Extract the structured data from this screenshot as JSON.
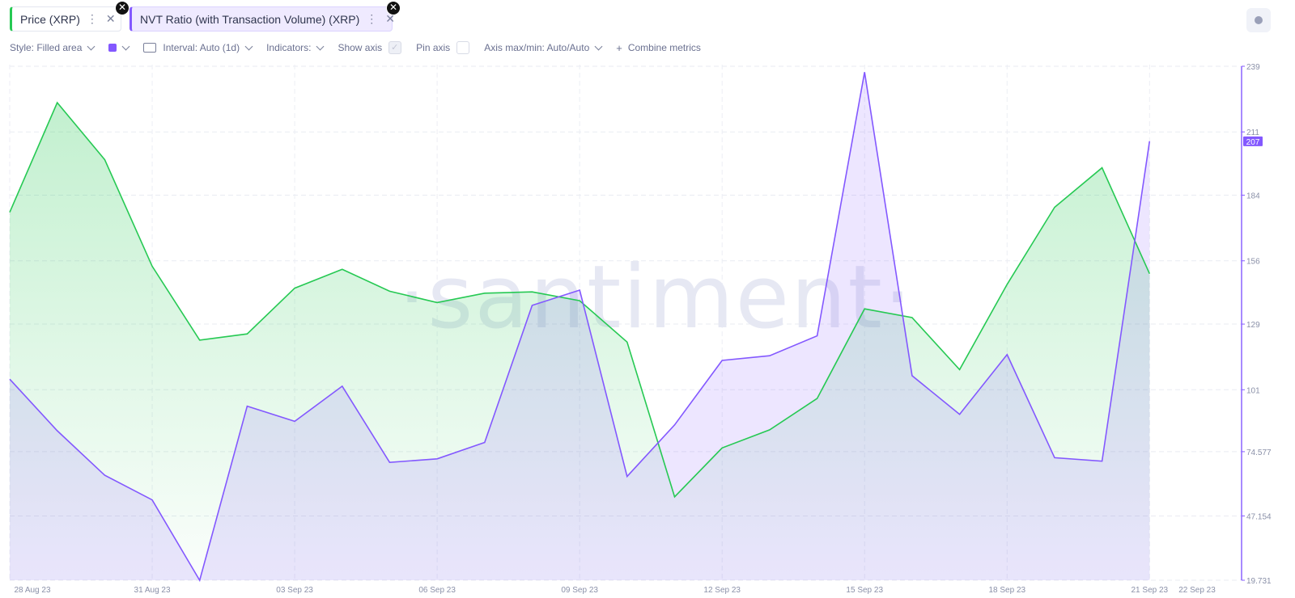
{
  "tabs": [
    {
      "label": "Price (XRP)",
      "color": "#26c953",
      "menu_icon": "vertical-dots-icon",
      "close_icon": "close-icon"
    },
    {
      "label": "NVT Ratio (with Transaction Volume) (XRP)",
      "color": "#8358ff",
      "menu_icon": "vertical-dots-icon",
      "close_icon": "close-icon"
    }
  ],
  "toolbar": {
    "style": "Style: Filled area",
    "interval": "Interval: Auto (1d)",
    "indicators": "Indicators:",
    "show_axis": "Show axis",
    "show_axis_checked": true,
    "pin_axis": "Pin axis",
    "pin_axis_checked": false,
    "axis_maxmin": "Axis max/min: Auto/Auto",
    "combine": "Combine metrics",
    "series_color": "#8358ff"
  },
  "watermark": "·santiment·",
  "chart_data": {
    "type": "area",
    "x": [
      "28 Aug 23",
      "29 Aug 23",
      "30 Aug 23",
      "31 Aug 23",
      "01 Sep 23",
      "02 Sep 23",
      "03 Sep 23",
      "04 Sep 23",
      "05 Sep 23",
      "06 Sep 23",
      "07 Sep 23",
      "08 Sep 23",
      "09 Sep 23",
      "10 Sep 23",
      "11 Sep 23",
      "12 Sep 23",
      "13 Sep 23",
      "14 Sep 23",
      "15 Sep 23",
      "16 Sep 23",
      "17 Sep 23",
      "18 Sep 23",
      "19 Sep 23",
      "20 Sep 23",
      "21 Sep 23",
      "22 Sep 23"
    ],
    "x_tick_labels": [
      "28 Aug 23",
      "31 Aug 23",
      "03 Sep 23",
      "06 Sep 23",
      "09 Sep 23",
      "12 Sep 23",
      "15 Sep 23",
      "18 Sep 23",
      "21 Sep 23",
      "22 Sep 23"
    ],
    "series": [
      {
        "name": "Price (XRP)",
        "color": "#26c953",
        "axis": "hidden",
        "values": [
          0.5212,
          0.5387,
          0.5296,
          0.5126,
          0.5008,
          0.5018,
          0.5091,
          0.5121,
          0.5086,
          0.5068,
          0.5083,
          0.5085,
          0.5071,
          0.5005,
          0.4758,
          0.4836,
          0.4865,
          0.4915,
          0.5058,
          0.5044,
          0.4961,
          0.5097,
          0.522,
          0.5283,
          0.5114,
          null
        ]
      },
      {
        "name": "NVT Ratio (with Transaction Volume) (XRP)",
        "color": "#8358ff",
        "axis": "right",
        "values": [
          105.5,
          83.5,
          64.5,
          54.0,
          19.7,
          94.0,
          87.5,
          102.5,
          70.0,
          71.5,
          78.5,
          137.0,
          143.5,
          64.0,
          86.0,
          113.5,
          115.5,
          124.0,
          236.5,
          107.0,
          90.5,
          116.0,
          72.0,
          70.5,
          207.0,
          null
        ]
      }
    ],
    "y_right_ticks": [
      "239",
      "211",
      "184",
      "156",
      "129",
      "101",
      "74.577",
      "47.154",
      "19.731"
    ],
    "y_right_range": [
      19.731,
      239
    ],
    "price_range": [
      0.4625,
      0.5445
    ],
    "last_value_badge": "207",
    "grid": true
  }
}
